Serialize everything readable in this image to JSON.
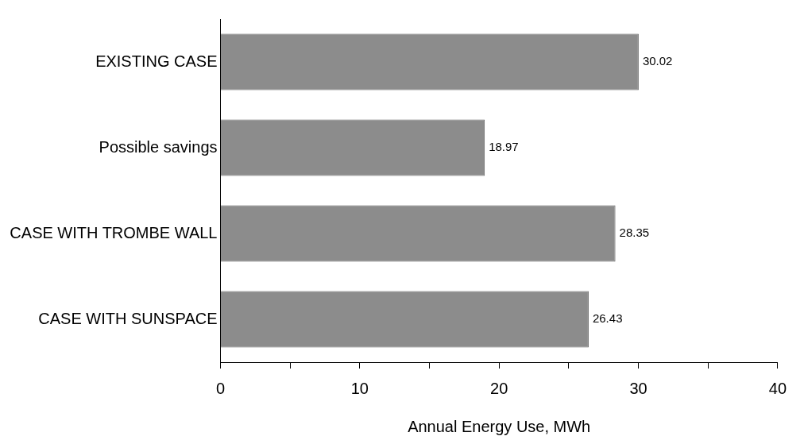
{
  "chart_data": {
    "type": "bar",
    "orientation": "horizontal",
    "xlabel": "Annual Energy Use, MWh",
    "categories": [
      "EXISTING CASE",
      "Possible savings",
      "CASE WITH TROMBE WALL",
      "CASE WITH SUNSPACE"
    ],
    "values": [
      30.02,
      18.97,
      28.35,
      26.43
    ],
    "color": "#8c8c8c",
    "xlim": [
      0,
      40
    ],
    "xticks": [
      0,
      {
        "value": 5,
        "label": null
      },
      10,
      {
        "value": 15,
        "label": null
      },
      20,
      {
        "value": 25,
        "label": null
      },
      30,
      {
        "value": 35,
        "label": null
      },
      40
    ],
    "data_labels": true,
    "grid": false,
    "legend": false
  }
}
